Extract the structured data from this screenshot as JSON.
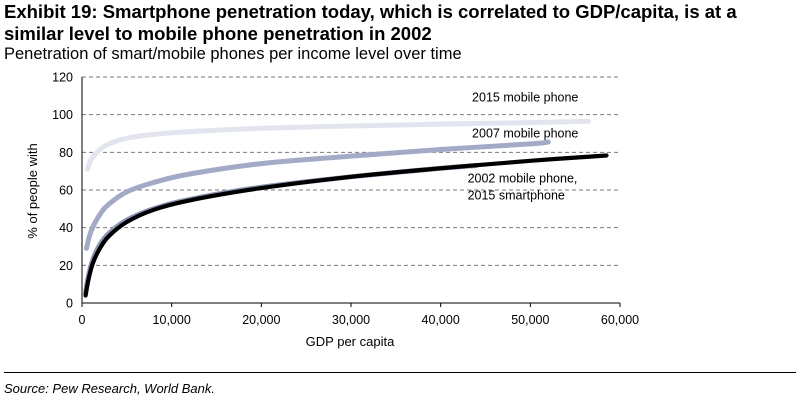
{
  "exhibit": {
    "title": "Exhibit 19: Smartphone penetration today, which is correlated to GDP/capita, is at a similar level to mobile phone penetration in 2002",
    "subtitle": "Penetration of smart/mobile phones per income level over time",
    "source": "Source: Pew Research, World Bank."
  },
  "chart_data": {
    "type": "line",
    "title": "Penetration of smart/mobile phones per income level over time",
    "xlabel": "GDP per capita",
    "ylabel": "% of people with",
    "xlim": [
      0,
      60000
    ],
    "ylim": [
      0,
      120
    ],
    "x_ticks": [
      0,
      10000,
      20000,
      30000,
      40000,
      50000,
      60000
    ],
    "x_tick_labels": [
      "0",
      "10,000",
      "20,000",
      "30,000",
      "40,000",
      "50,000",
      "60,000"
    ],
    "y_ticks": [
      0,
      20,
      40,
      60,
      80,
      100,
      120
    ],
    "y_tick_labels": [
      "0",
      "20",
      "40",
      "60",
      "80",
      "100",
      "120"
    ],
    "grid": "horizontal dashed",
    "series": [
      {
        "name": "2015 mobile phone",
        "color": "#e3e5ee",
        "points": [
          [
            600,
            71
          ],
          [
            1000,
            76
          ],
          [
            2000,
            81.5
          ],
          [
            3000,
            84.5
          ],
          [
            5000,
            87.5
          ],
          [
            8000,
            89.5
          ],
          [
            12000,
            91
          ],
          [
            20000,
            92.8
          ],
          [
            30000,
            94
          ],
          [
            40000,
            95
          ],
          [
            50000,
            95.8
          ],
          [
            56500,
            96.5
          ]
        ]
      },
      {
        "name": "2007 mobile phone",
        "color": "#a2aac6",
        "points": [
          [
            500,
            29
          ],
          [
            1000,
            38
          ],
          [
            2000,
            47
          ],
          [
            3000,
            52.5
          ],
          [
            5000,
            59
          ],
          [
            8000,
            64
          ],
          [
            12000,
            68.5
          ],
          [
            20000,
            74
          ],
          [
            30000,
            78
          ],
          [
            40000,
            81.5
          ],
          [
            50000,
            84.5
          ],
          [
            52000,
            85.5
          ]
        ]
      },
      {
        "name": "2002 mobile phone,",
        "color": "#8c95b3",
        "points": [
          [
            400,
            5
          ],
          [
            700,
            14
          ],
          [
            1200,
            23
          ],
          [
            2000,
            31
          ],
          [
            3000,
            37
          ],
          [
            5000,
            44
          ],
          [
            8000,
            50
          ],
          [
            12000,
            55
          ],
          [
            20000,
            61.5
          ],
          [
            30000,
            67
          ],
          [
            40000,
            71.5
          ],
          [
            44000,
            73
          ]
        ]
      },
      {
        "name": "2015 smartphone",
        "color": "#000000",
        "points": [
          [
            400,
            4
          ],
          [
            700,
            12
          ],
          [
            1200,
            21
          ],
          [
            2000,
            29
          ],
          [
            3000,
            35.5
          ],
          [
            5000,
            43
          ],
          [
            8000,
            49.5
          ],
          [
            12000,
            54.5
          ],
          [
            20000,
            61
          ],
          [
            30000,
            67
          ],
          [
            40000,
            71.5
          ],
          [
            50000,
            75.5
          ],
          [
            58500,
            78.3
          ]
        ]
      }
    ],
    "annotations": [
      {
        "text": "2015 mobile phone",
        "x": 43500,
        "y": 107
      },
      {
        "text": "2007 mobile phone",
        "x": 43500,
        "y": 88
      },
      {
        "text": "2002 mobile phone,",
        "x": 43000,
        "y": 64
      },
      {
        "text": "2015 smartphone",
        "x": 43000,
        "y": 55
      }
    ]
  }
}
